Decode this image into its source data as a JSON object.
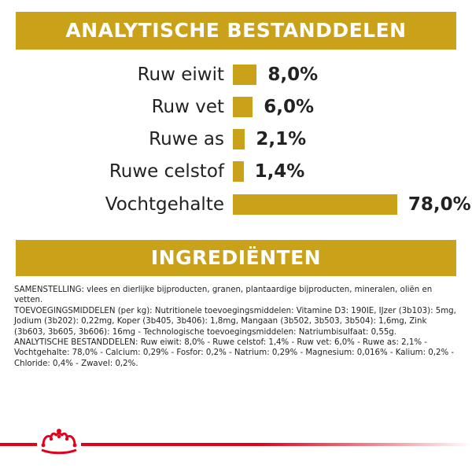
{
  "heading_analysis": "ANALYTISCHE BESTANDDELEN",
  "heading_ingredients": "INGREDIËNTEN",
  "nutrients": [
    {
      "label": "Ruw eiwit",
      "value": "8,0%",
      "percent": 8.0
    },
    {
      "label": "Ruw vet",
      "value": "6,0%",
      "percent": 6.0
    },
    {
      "label": "Ruwe as",
      "value": "2,1%",
      "percent": 2.1
    },
    {
      "label": "Ruwe celstof",
      "value": "1,4%",
      "percent": 1.4
    },
    {
      "label": "Vochtgehalte",
      "value": "78,0%",
      "percent": 78.0
    }
  ],
  "ingredients": {
    "composition": "SAMENSTELLING: vlees en dierlijke bijproducten, granen, plantaardige bijproducten, mineralen, oliën en vetten.",
    "additives": "TOEVOEGINGSMIDDELEN (per kg): Nutritionele toevoegingsmiddelen: Vitamine D3: 190IE, IJzer (3b103): 5mg, Jodium (3b202): 0,22mg, Koper (3b405, 3b406): 1,8mg, Mangaan (3b502, 3b503, 3b504): 1,6mg, Zink (3b603, 3b605, 3b606): 16mg - Technologische toevoegingsmiddelen: Natriumbisulfaat: 0,55g.",
    "analysis": "ANALYTISCHE BESTANDDELEN: Ruw eiwit: 8,0% - Ruwe celstof: 1,4% - Ruw vet: 6,0% - Ruwe as: 2,1% - Vochtgehalte: 78,0% - Calcium: 0,29% - Fosfor: 0,2% - Natrium: 0,29% - Magnesium: 0,016% - Kalium: 0,2% - Chloride: 0,4% - Zwavel: 0,2%."
  },
  "colors": {
    "accent": "#c9a21a",
    "brand_red": "#e2001a"
  },
  "logo_icon": "royal-canin-crown-icon"
}
